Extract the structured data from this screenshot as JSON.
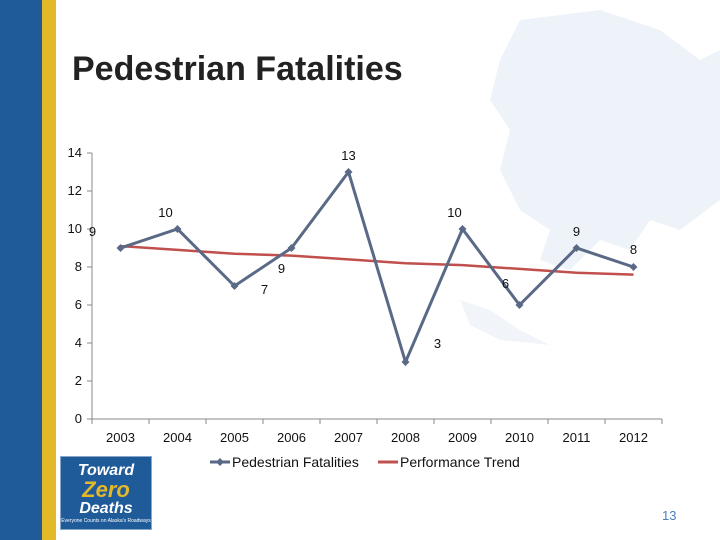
{
  "title": "Pedestrian Fatalities",
  "page_number": "13",
  "logo": {
    "line1": "Toward",
    "line2": "Zero",
    "line3": "Deaths",
    "tagline": "Everyone Counts on Alaska's Roadways"
  },
  "colors": {
    "series": "#5a6a86",
    "trend": "#c0504d",
    "stripe_blue": "#1f5a99",
    "stripe_gold": "#e3b92a"
  },
  "chart_data": {
    "type": "line",
    "title": "Pedestrian Fatalities",
    "x": [
      "2003",
      "2004",
      "2005",
      "2006",
      "2007",
      "2008",
      "2009",
      "2010",
      "2011",
      "2012"
    ],
    "series": [
      {
        "name": "Pedestrian Fatalities",
        "values": [
          9,
          10,
          7,
          9,
          13,
          3,
          10,
          6,
          9,
          8
        ]
      },
      {
        "name": "Performance Trend",
        "values": [
          9.1,
          8.9,
          8.7,
          8.6,
          8.4,
          8.2,
          8.1,
          7.9,
          7.7,
          7.6
        ]
      }
    ],
    "data_labels": [
      "9",
      "10",
      "7",
      "9",
      "13",
      "3",
      "10",
      "6",
      "9",
      "8"
    ],
    "yticks": [
      0,
      2,
      4,
      6,
      8,
      10,
      12,
      14
    ],
    "ylim": [
      0,
      14
    ],
    "legend": "bottom",
    "grid": false
  }
}
